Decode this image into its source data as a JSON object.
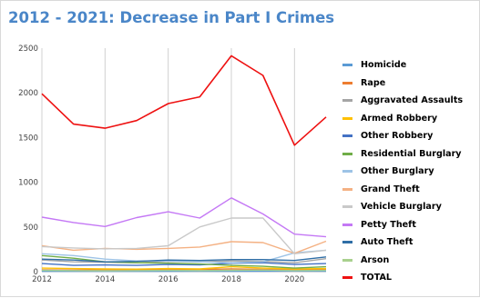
{
  "title": "2012 - 2021: Decrease in Part I Crimes",
  "chart_data": {
    "type": "line",
    "title": "2012 - 2021: Decrease in Part I Crimes",
    "xlabel": "",
    "ylabel": "",
    "x": [
      2012,
      2013,
      2014,
      2015,
      2016,
      2017,
      2018,
      2019,
      2020,
      2021
    ],
    "xlim": [
      2012,
      2021
    ],
    "ylim": [
      0,
      2500
    ],
    "xticks": [
      "2012",
      "2014",
      "2016",
      "2018",
      "2020"
    ],
    "yticks": [
      "0",
      "500",
      "1000",
      "1500",
      "2000",
      "2500"
    ],
    "grid": "vertical",
    "legend_position": "right",
    "series": [
      {
        "name": "Homicide",
        "color": "#5b9bd5",
        "values": [
          5,
          4,
          5,
          4,
          5,
          6,
          5,
          6,
          7,
          6
        ]
      },
      {
        "name": "Rape",
        "color": "#ed7d31",
        "values": [
          20,
          18,
          22,
          20,
          25,
          24,
          30,
          26,
          22,
          25
        ]
      },
      {
        "name": "Aggravated Assaults",
        "color": "#a5a5a5",
        "values": [
          130,
          110,
          105,
          100,
          115,
          110,
          120,
          115,
          100,
          145
        ]
      },
      {
        "name": "Armed Robbery",
        "color": "#ffc000",
        "values": [
          40,
          35,
          30,
          28,
          35,
          30,
          55,
          40,
          30,
          35
        ]
      },
      {
        "name": "Other Robbery",
        "color": "#4472c4",
        "values": [
          90,
          70,
          75,
          70,
          80,
          75,
          95,
          100,
          80,
          90
        ]
      },
      {
        "name": "Residential Burglary",
        "color": "#70ad47",
        "values": [
          180,
          150,
          110,
          100,
          95,
          85,
          70,
          60,
          40,
          55
        ]
      },
      {
        "name": "Other Burglary",
        "color": "#9dc3e6",
        "values": [
          200,
          180,
          140,
          120,
          120,
          110,
          100,
          110,
          210,
          240
        ]
      },
      {
        "name": "Grand Theft",
        "color": "#f4b183",
        "values": [
          290,
          240,
          260,
          250,
          260,
          275,
          335,
          325,
          205,
          340
        ]
      },
      {
        "name": "Vehicle Burglary",
        "color": "#c9c9c9",
        "values": [
          280,
          265,
          255,
          260,
          290,
          500,
          600,
          600,
          200,
          240
        ]
      },
      {
        "name": "Petty Theft",
        "color": "#c478f5",
        "values": [
          610,
          550,
          505,
          605,
          670,
          600,
          825,
          645,
          420,
          390
        ]
      },
      {
        "name": "Auto Theft",
        "color": "#2f6ea6",
        "values": [
          140,
          130,
          110,
          115,
          130,
          125,
          135,
          135,
          125,
          165
        ]
      },
      {
        "name": "Arson",
        "color": "#a9d18e",
        "values": [
          15,
          12,
          10,
          12,
          14,
          12,
          15,
          18,
          12,
          14
        ]
      },
      {
        "name": "TOTAL",
        "color": "#ee1111",
        "values": [
          1990,
          1650,
          1605,
          1690,
          1880,
          1955,
          2415,
          2195,
          1415,
          1730
        ]
      }
    ]
  }
}
